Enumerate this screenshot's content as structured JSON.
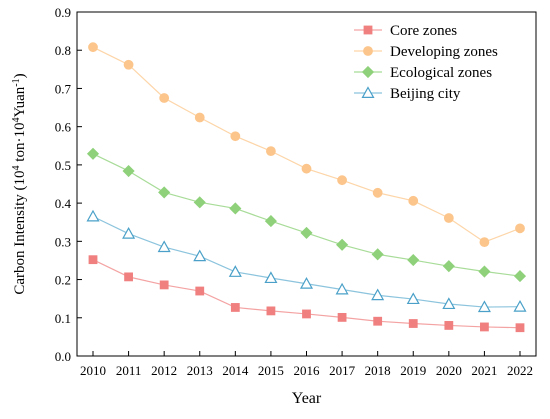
{
  "chart_data": {
    "type": "line",
    "title": "",
    "xlabel": "Year",
    "ylabel_parts": {
      "prefix": "Carbon Intensity (10",
      "sup1": "4",
      "middle": " ton·10",
      "sup2": "4",
      "yuan": "Yuan",
      "sup3": "-1",
      "suffix": ")"
    },
    "x": [
      2010,
      2011,
      2012,
      2013,
      2014,
      2015,
      2016,
      2017,
      2018,
      2019,
      2020,
      2021,
      2022
    ],
    "xticks": [
      "2010",
      "2011",
      "2012",
      "2013",
      "2014",
      "2015",
      "2016",
      "2017",
      "2018",
      "2019",
      "2020",
      "2021",
      "2022"
    ],
    "ylim": [
      0,
      0.9
    ],
    "yticks": [
      "0.0",
      "0.1",
      "0.2",
      "0.3",
      "0.4",
      "0.5",
      "0.6",
      "0.7",
      "0.8",
      "0.9"
    ],
    "grid": false,
    "legend_position": "top-right",
    "series": [
      {
        "name": "Core zones",
        "marker": "square",
        "color": "#f08080",
        "line_color": "#f4a3a3",
        "values": [
          0.252,
          0.207,
          0.186,
          0.17,
          0.127,
          0.118,
          0.11,
          0.101,
          0.091,
          0.085,
          0.08,
          0.076,
          0.074
        ]
      },
      {
        "name": "Developing zones",
        "marker": "circle",
        "color": "#fcc58b",
        "line_color": "#fdd5a8",
        "values": [
          0.808,
          0.762,
          0.675,
          0.624,
          0.575,
          0.536,
          0.49,
          0.46,
          0.427,
          0.406,
          0.361,
          0.298,
          0.334
        ]
      },
      {
        "name": "Ecological zones",
        "marker": "diamond",
        "color": "#8ed17a",
        "line_color": "#a8dc98",
        "values": [
          0.529,
          0.484,
          0.428,
          0.402,
          0.386,
          0.353,
          0.322,
          0.291,
          0.266,
          0.251,
          0.235,
          0.221,
          0.209
        ]
      },
      {
        "name": "Beijing city",
        "marker": "triangle",
        "color": "#4aa0c8",
        "line_color": "#8cc4dd",
        "values": [
          0.365,
          0.32,
          0.285,
          0.261,
          0.22,
          0.204,
          0.189,
          0.174,
          0.159,
          0.149,
          0.136,
          0.128,
          0.129
        ]
      }
    ]
  }
}
